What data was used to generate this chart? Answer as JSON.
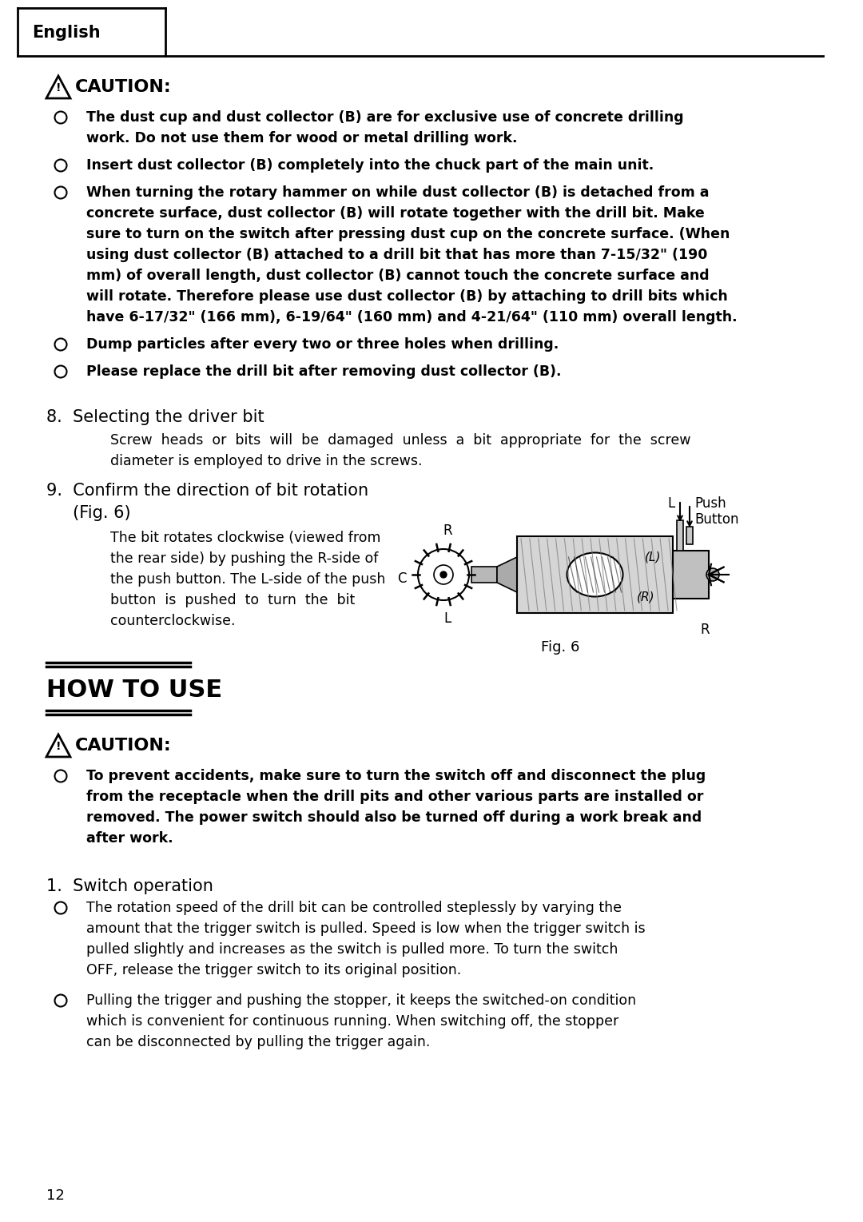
{
  "bg_color": "#ffffff",
  "page_number": "12",
  "header_tab_text": "English",
  "caution_title": "CAUTION:",
  "bullet_items_section1": [
    [
      "The dust cup and dust collector (B) are for exclusive use of concrete drilling",
      "work. Do not use them for wood or metal drilling work."
    ],
    [
      "Insert dust collector (B) completely into the chuck part of the main unit."
    ],
    [
      "When turning the rotary hammer on while dust collector (B) is detached from a",
      "concrete surface, dust collector (B) will rotate together with the drill bit. Make",
      "sure to turn on the switch after pressing dust cup on the concrete surface. (When",
      "using dust collector (B) attached to a drill bit that has more than 7-15/32\" (190",
      "mm) of overall length, dust collector (B) cannot touch the concrete surface and",
      "will rotate. Therefore please use dust collector (B) by attaching to drill bits which",
      "have 6-17/32\" (166 mm), 6-19/64\" (160 mm) and 4-21/64\" (110 mm) overall length."
    ],
    [
      "Dump particles after every two or three holes when drilling."
    ],
    [
      "Please replace the drill bit after removing dust collector (B)."
    ]
  ],
  "section8_title": "8.  Selecting the driver bit",
  "section8_body": [
    "Screw  heads  or  bits  will  be  damaged  unless  a  bit  appropriate  for  the  screw",
    "diameter is employed to drive in the screws."
  ],
  "section9_title_line1": "9.  Confirm the direction of bit rotation",
  "section9_title_line2": "     (Fig. 6)",
  "section9_body": [
    "The bit rotates clockwise (viewed from",
    "the rear side) by pushing the R-side of",
    "the push button. The L-side of the push",
    "button  is  pushed  to  turn  the  bit",
    "counterclockwise."
  ],
  "fig6_label": "Fig. 6",
  "how_to_use_title": "HOW TO USE",
  "caution2_title": "CAUTION:",
  "bullet_items_section2": [
    [
      "To prevent accidents, make sure to turn the switch off and disconnect the plug",
      "from the receptacle when the drill pits and other various parts are installed or",
      "removed. The power switch should also be turned off during a work break and",
      "after work."
    ]
  ],
  "section1_title": "1.  Switch operation",
  "bullet_items_section3": [
    [
      "The rotation speed of the drill bit can be controlled steplessly by varying the",
      "amount that the trigger switch is pulled. Speed is low when the trigger switch is",
      "pulled slightly and increases as the switch is pulled more. To turn the switch",
      "OFF, release the trigger switch to its original position."
    ],
    [
      "Pulling the trigger and pushing the stopper, it keeps the switched-on condition",
      "which is convenient for continuous running. When switching off, the stopper",
      "can be disconnected by pulling the trigger again."
    ]
  ]
}
